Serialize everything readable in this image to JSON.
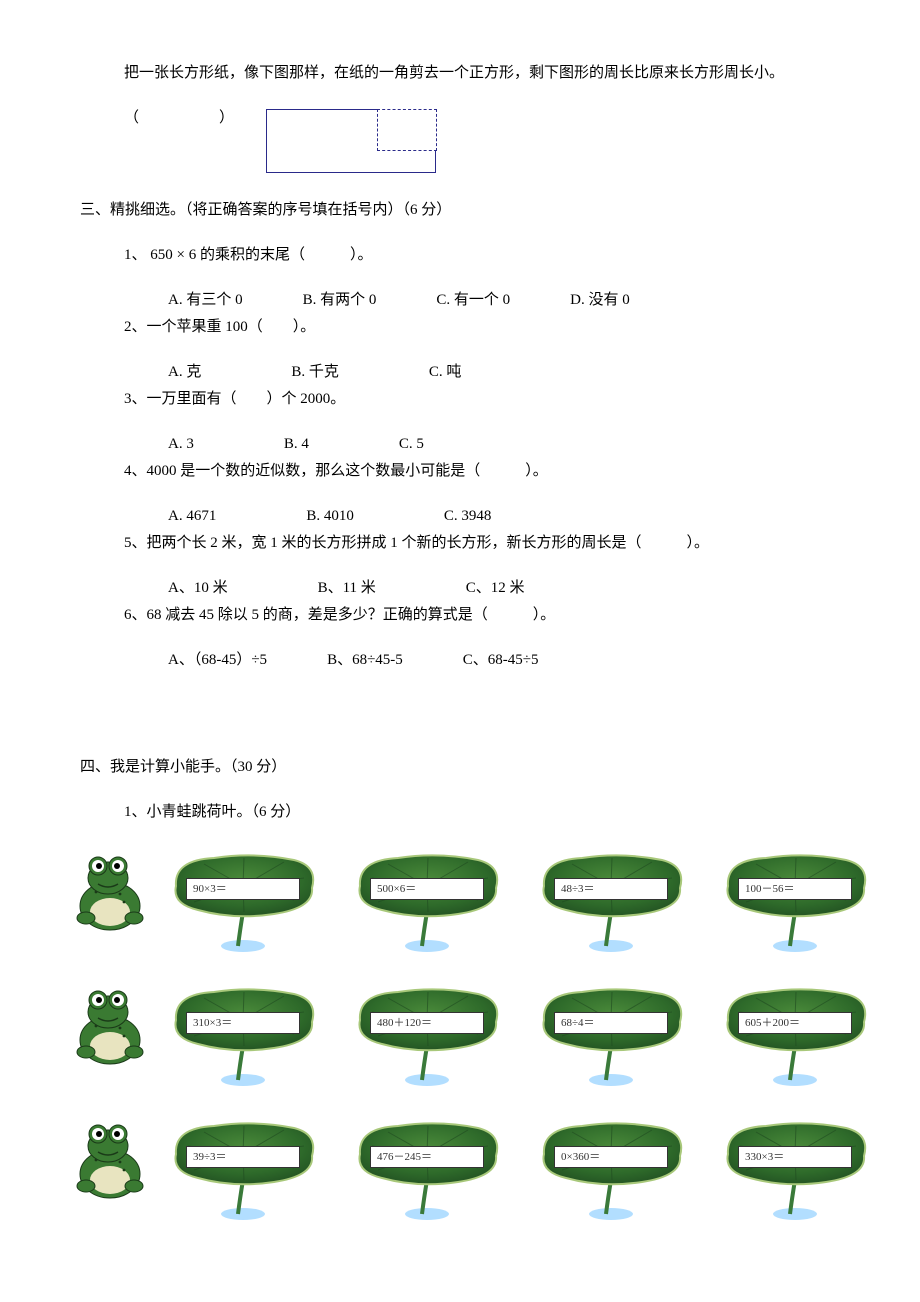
{
  "q5tf": {
    "num": "5、",
    "text": "把一张长方形纸，像下图那样，在纸的一角剪去一个正方形，剩下图形的周长比原来长方形周长小。",
    "answer_paren": "（　　　　）"
  },
  "section3": {
    "head": "三、精挑细选。（将正确答案的序号填在括号内）（6 分）",
    "q1": {
      "stem": "1、 650 × 6 的乘积的末尾（　　　）。",
      "opts": [
        "A. 有三个 0",
        "B. 有两个 0",
        "C. 有一个 0",
        "D. 没有 0"
      ]
    },
    "q2": {
      "stem": "2、一个苹果重 100（　　）。",
      "opts": [
        "A. 克",
        "B. 千克",
        "C. 吨"
      ]
    },
    "q3": {
      "stem": "3、一万里面有（　　）个 2000。",
      "opts": [
        "A. 3",
        "B. 4",
        "C. 5"
      ]
    },
    "q4": {
      "stem": "4、4000 是一个数的近似数，那么这个数最小可能是（　　　）。",
      "opts": [
        "A. 4671",
        "B. 4010",
        "C. 3948"
      ]
    },
    "q5": {
      "stem": "5、把两个长 2 米，宽 1 米的长方形拼成 1 个新的长方形，新长方形的周长是（　　　）。",
      "opts": [
        "A、10 米",
        "B、11 米",
        "C、12 米"
      ]
    },
    "q6": {
      "stem": "6、68 减去 45 除以 5 的商，差是多少？正确的算式是（　　　）。",
      "opts": [
        "A、（68-45）÷5",
        "B、68÷45-5",
        "C、68-45÷5"
      ]
    }
  },
  "section4": {
    "head": "四、我是计算小能手。（30 分）",
    "sub1": "1、小青蛙跳荷叶。（6 分）",
    "rows": [
      [
        "90×3＝",
        "500×6＝",
        "48÷3＝",
        "100－56＝"
      ],
      [
        "310×3＝",
        "480＋120＝",
        "68÷4＝",
        "605＋200＝"
      ],
      [
        "39÷3＝",
        "476－245＝",
        "0×360＝",
        "330×3＝"
      ]
    ]
  },
  "colors": {
    "leaf_dark": "#1f4a20",
    "leaf_mid": "#2e6a2a",
    "leaf_light": "#4a8a3a",
    "leaf_edge": "#a8c87a",
    "stem": "#3a7a3a",
    "frog_body": "#3a7a32",
    "frog_belly": "#e8e4c0",
    "frog_eye_white": "#ffffff",
    "frog_pupil": "#000000",
    "water": "#9fd6ff",
    "white": "#ffffff"
  }
}
